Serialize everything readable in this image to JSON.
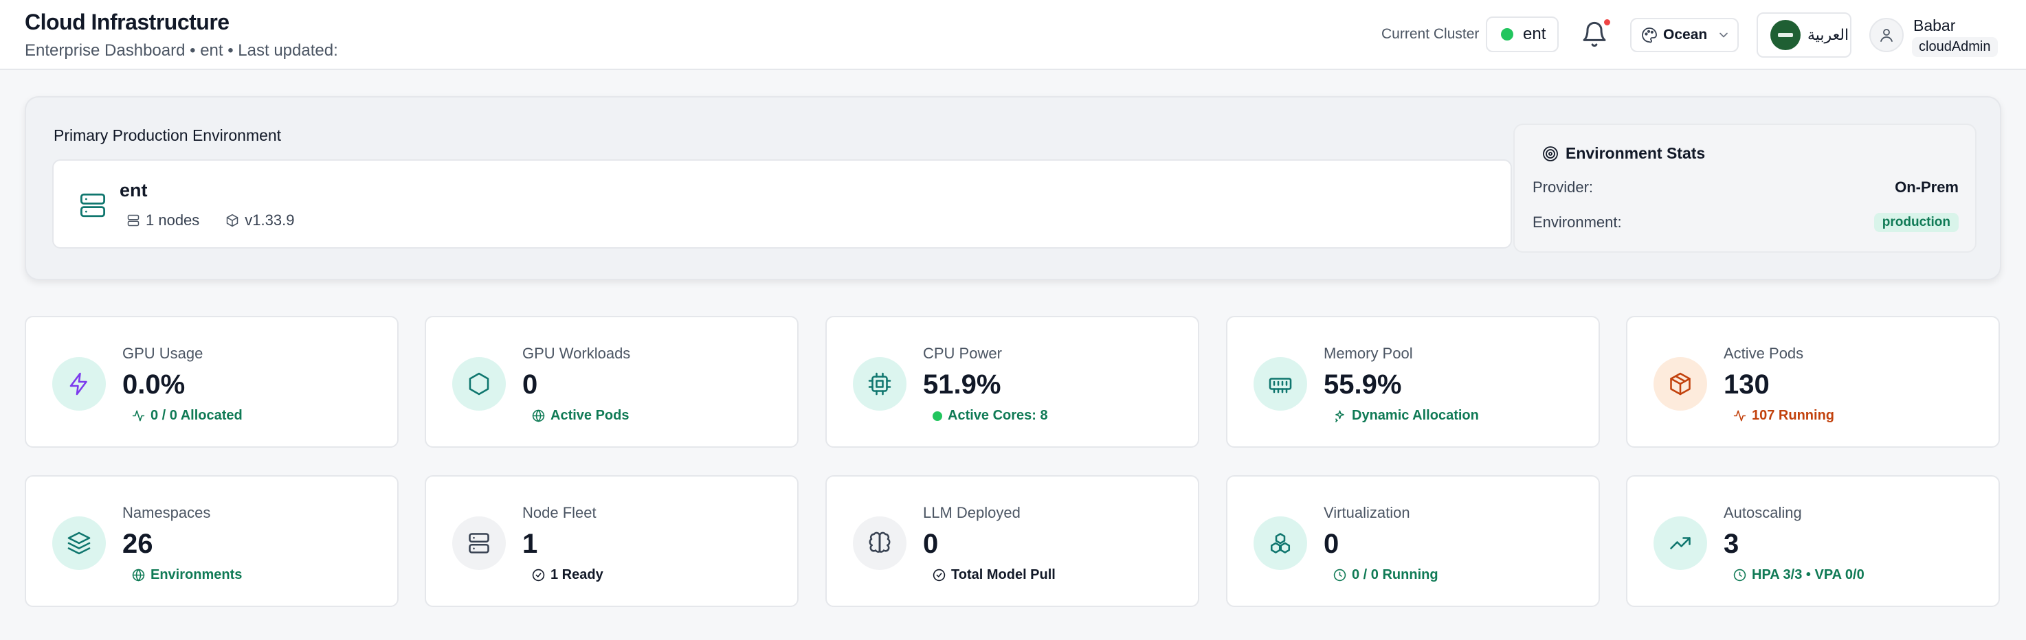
{
  "header": {
    "title": "Cloud Infrastructure",
    "subtitle": "Enterprise Dashboard • ent • Last updated:",
    "cluster_label": "Current Cluster",
    "cluster_name": "ent",
    "theme_name": "Ocean",
    "language_label": "العربية",
    "user_name": "Babar",
    "user_role": "cloudAdmin",
    "icons": {
      "bell": "bell-icon",
      "theme": "palette-icon",
      "chevron": "chevron-down-icon",
      "user": "user-icon",
      "flag": "saudi-flag-icon"
    }
  },
  "environment": {
    "title": "Primary Production Environment",
    "cluster_name": "ent",
    "nodes": "1 nodes",
    "version": "v1.33.9",
    "stats_title": "Environment Stats",
    "provider_label": "Provider:",
    "provider_value": "On-Prem",
    "environment_label": "Environment:",
    "environment_value": "production"
  },
  "metrics": [
    {
      "label": "GPU Usage",
      "value": "0.0%",
      "sub": "0 / 0 Allocated",
      "icon": "zap-icon",
      "sub_icon": "activity-icon",
      "accent": "#7c3aed",
      "sub_color": "#0f7a55",
      "bg": "#dcf5ef"
    },
    {
      "label": "GPU Workloads",
      "value": "0",
      "sub": "Active Pods",
      "icon": "hexagon-icon",
      "sub_icon": "globe-icon",
      "accent": "#0f766e",
      "sub_color": "#0f7a55",
      "bg": "#dcf5ef"
    },
    {
      "label": "CPU Power",
      "value": "51.9%",
      "sub": "Active Cores: 8",
      "icon": "cpu-icon",
      "sub_icon": "dot-icon",
      "accent": "#0f766e",
      "sub_color": "#0f7a55",
      "bg": "#dcf5ef"
    },
    {
      "label": "Memory Pool",
      "value": "55.9%",
      "sub": "Dynamic Allocation",
      "icon": "memory-stick-icon",
      "sub_icon": "sparkle-icon",
      "accent": "#0f766e",
      "sub_color": "#0f7a55",
      "bg": "#dcf5ef"
    },
    {
      "label": "Active Pods",
      "value": "130",
      "sub": "107 Running",
      "icon": "package-icon",
      "sub_icon": "activity-icon",
      "accent": "#c2410c",
      "sub_color": "#c2410c",
      "bg": "#fdebdc"
    },
    {
      "label": "Namespaces",
      "value": "26",
      "sub": "Environments",
      "icon": "layers-icon",
      "sub_icon": "globe-icon",
      "accent": "#0f766e",
      "sub_color": "#0f7a55",
      "bg": "#dcf5ef"
    },
    {
      "label": "Node Fleet",
      "value": "1",
      "sub": "1 Ready",
      "icon": "server-icon",
      "sub_icon": "check-circle-icon",
      "accent": "#374151",
      "sub_color": "#111827",
      "bg": "#f1f2f4"
    },
    {
      "label": "LLM Deployed",
      "value": "0",
      "sub": "Total Model Pull",
      "icon": "brain-icon",
      "sub_icon": "check-circle-icon",
      "accent": "#374151",
      "sub_color": "#111827",
      "bg": "#f1f2f4"
    },
    {
      "label": "Virtualization",
      "value": "0",
      "sub": "0 / 0 Running",
      "icon": "boxes-icon",
      "sub_icon": "clock-icon",
      "accent": "#0f766e",
      "sub_color": "#0f7a55",
      "bg": "#dcf5ef"
    },
    {
      "label": "Autoscaling",
      "value": "3",
      "sub": "HPA 3/3 • VPA 0/0",
      "icon": "trending-up-icon",
      "sub_icon": "clock-icon",
      "accent": "#0f766e",
      "sub_color": "#0f7a55",
      "bg": "#dcf5ef"
    }
  ]
}
